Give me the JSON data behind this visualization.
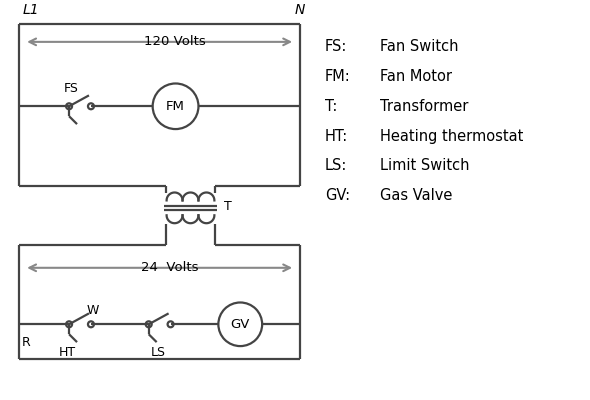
{
  "bg_color": "#ffffff",
  "line_color": "#444444",
  "arrow_color": "#888888",
  "text_color": "#000000",
  "legend": {
    "FS": "Fan Switch",
    "FM": "Fan Motor",
    "T": "Transformer",
    "HT": "Heating thermostat",
    "LS": "Limit Switch",
    "GV": "Gas Valve"
  },
  "L1_label": "L1",
  "N_label": "N",
  "volts120_label": "120 Volts",
  "volts24_label": "24  Volts",
  "FS_label": "FS",
  "FM_label": "FM",
  "T_label": "T",
  "R_label": "R",
  "W_label": "W",
  "HT_label": "HT",
  "LS_label": "LS",
  "GV_label": "GV"
}
